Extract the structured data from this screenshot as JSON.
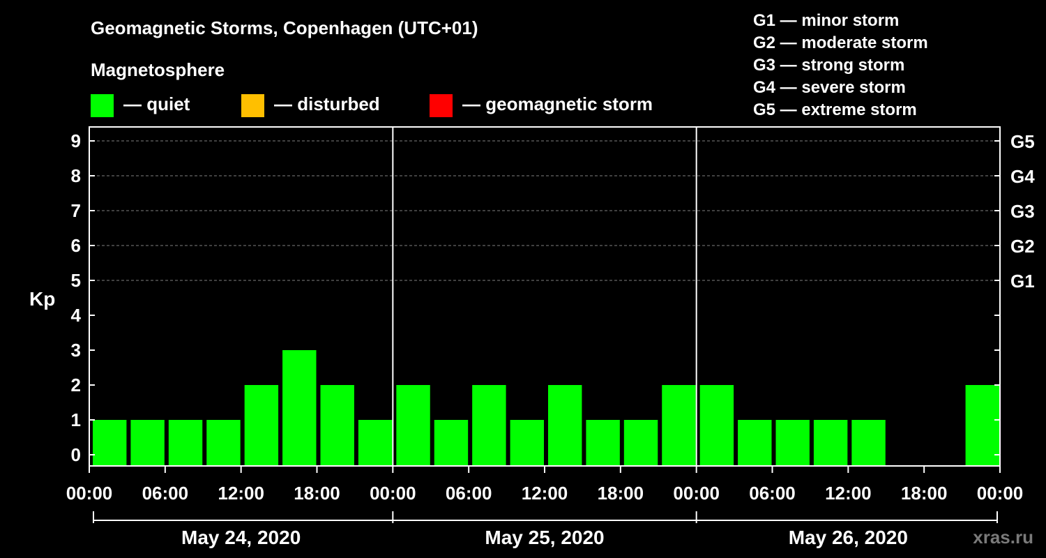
{
  "header": {
    "title": "Geomagnetic Storms, Copenhagen (UTC+01)",
    "subtitle": "Magnetosphere"
  },
  "legend": {
    "items": [
      {
        "label": "— quiet",
        "color": "#00ff00"
      },
      {
        "label": "— disturbed",
        "color": "#ffbf00"
      },
      {
        "label": "— geomagnetic storm",
        "color": "#ff0000"
      }
    ]
  },
  "storm_scale": [
    "G1 — minor storm",
    "G2 — moderate storm",
    "G3 — strong storm",
    "G4 — severe storm",
    "G5 — extreme storm"
  ],
  "watermark": "xras.ru",
  "chart_data": {
    "type": "bar",
    "ylabel": "Kp",
    "ylim": [
      0,
      9
    ],
    "y_ticks": [
      "0",
      "1",
      "2",
      "3",
      "4",
      "5",
      "6",
      "7",
      "8",
      "9"
    ],
    "right_ticks": [
      {
        "value": 5,
        "label": "G1"
      },
      {
        "value": 6,
        "label": "G2"
      },
      {
        "value": 7,
        "label": "G3"
      },
      {
        "value": 8,
        "label": "G4"
      },
      {
        "value": 9,
        "label": "G5"
      }
    ],
    "x_tick_labels": [
      "00:00",
      "06:00",
      "12:00",
      "18:00",
      "00:00",
      "06:00",
      "12:00",
      "18:00",
      "00:00",
      "06:00",
      "12:00",
      "18:00",
      "00:00"
    ],
    "days": [
      "May 24, 2020",
      "May 25, 2020",
      "May 26, 2020"
    ],
    "grid": "dashed horizontal at Kp 5-9",
    "interval_hours": 3,
    "series": [
      {
        "values": [
          1,
          1,
          1,
          1,
          2,
          3,
          2,
          1,
          2,
          1,
          2,
          1,
          2,
          1,
          1,
          2,
          2,
          1,
          1,
          1,
          1,
          null,
          null,
          2
        ],
        "color": "#00ff00"
      }
    ]
  }
}
